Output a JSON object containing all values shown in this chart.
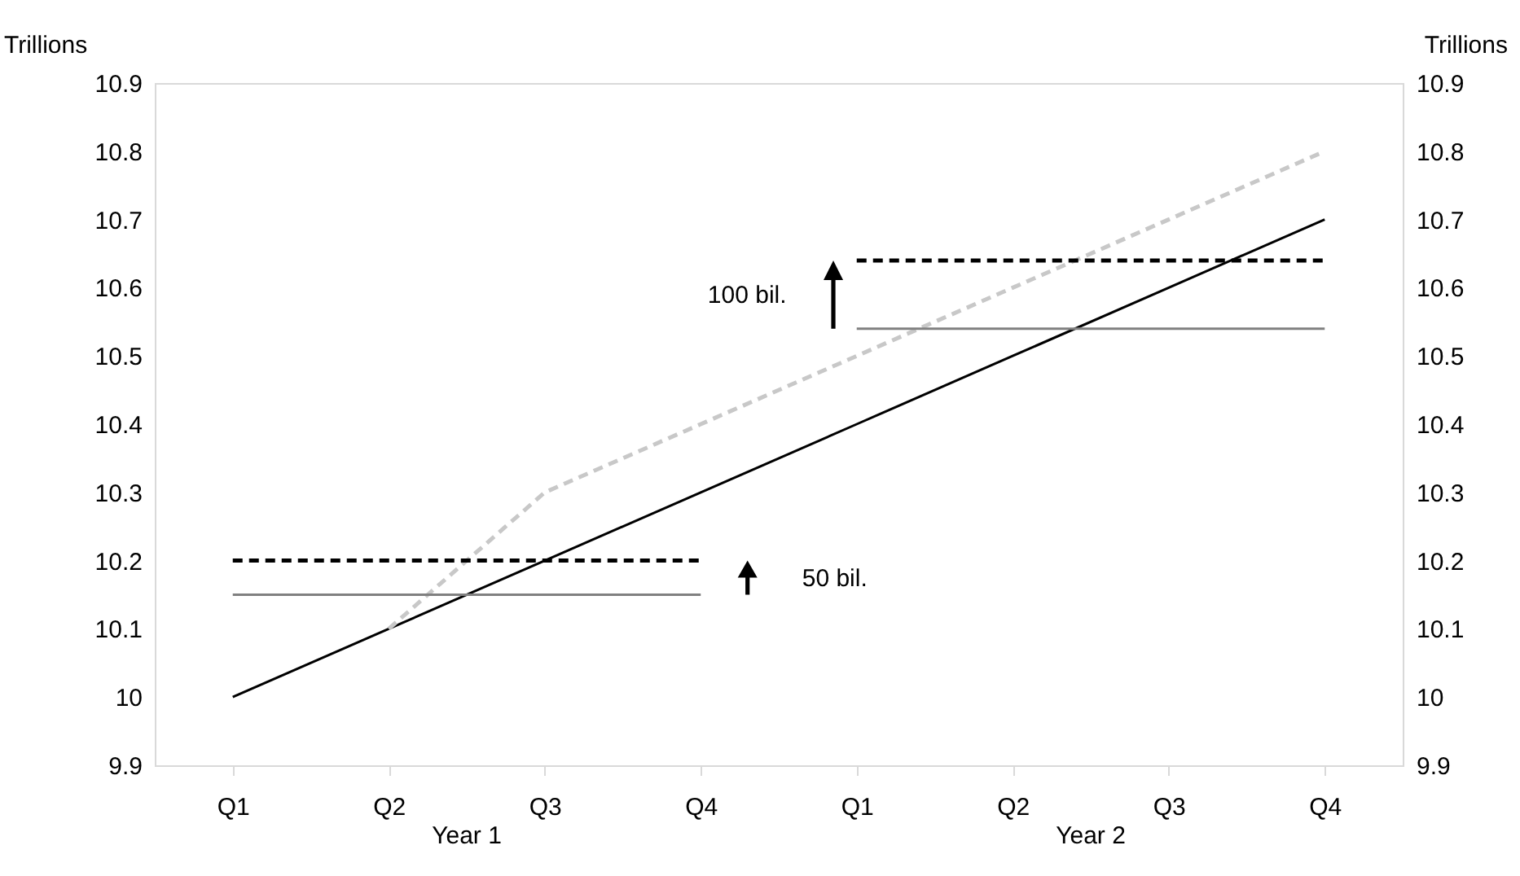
{
  "chart_data": {
    "type": "line",
    "categories": [
      "Q1",
      "Q2",
      "Q3",
      "Q4",
      "Q1",
      "Q2",
      "Q3",
      "Q4"
    ],
    "series": [
      {
        "color": "#000000",
        "line_style": "solid",
        "values": [
          10.0,
          10.1,
          10.2,
          10.3,
          10.4,
          10.5,
          10.6,
          10.7
        ]
      },
      {
        "color": "#c8c8c8",
        "line_style": "dashed",
        "values": [
          null,
          10.1,
          10.3,
          10.4,
          10.5,
          10.6,
          10.7,
          10.8
        ]
      },
      {
        "color": "#808080",
        "line_style": "solid",
        "values": [
          10.15,
          10.15,
          10.15,
          10.15,
          null,
          null,
          null,
          null
        ]
      },
      {
        "color": "#000000",
        "line_style": "dashed",
        "values": [
          10.2,
          10.2,
          10.2,
          10.2,
          null,
          null,
          null,
          null
        ]
      },
      {
        "color": "#808080",
        "line_style": "solid",
        "values": [
          null,
          null,
          null,
          null,
          10.54,
          10.54,
          10.54,
          10.54
        ]
      },
      {
        "color": "#000000",
        "line_style": "dashed",
        "values": [
          null,
          null,
          null,
          null,
          10.64,
          10.64,
          10.64,
          10.64
        ]
      }
    ],
    "ylabel": "Trillions",
    "y2label": "Trillions",
    "ylim": [
      9.9,
      10.9
    ],
    "yticks": [
      9.9,
      10,
      10.1,
      10.2,
      10.3,
      10.4,
      10.5,
      10.6,
      10.7,
      10.8,
      10.9
    ],
    "y2lim": [
      9.9,
      10.9
    ],
    "y2ticks": [
      9.9,
      10,
      10.1,
      10.2,
      10.3,
      10.4,
      10.5,
      10.6,
      10.7,
      10.8,
      10.9
    ],
    "annotations": [
      "Year 1",
      "Year 2",
      "50 bil.",
      "100 bil."
    ],
    "grid": false,
    "marker": "none"
  }
}
